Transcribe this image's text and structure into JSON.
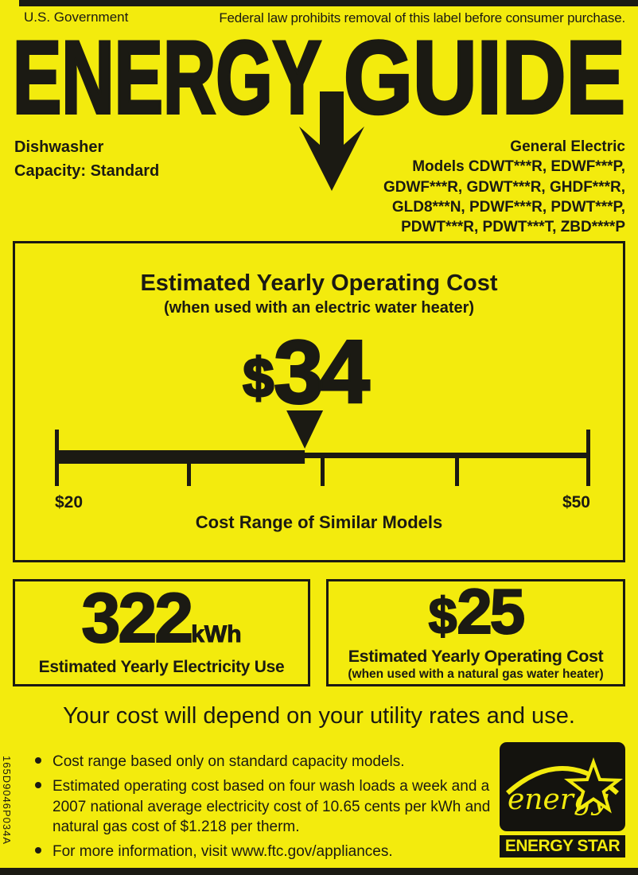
{
  "colors": {
    "background_yellow": "#f3eb0d",
    "ink_black": "#1b1a13"
  },
  "icons": {
    "title_arrow": "down-arrow-icon",
    "cost_marker": "triangle-down-icon",
    "energy_star_emblem": "star-outline-icon"
  },
  "header": {
    "left": "U.S. Government",
    "right": "Federal law prohibits removal of this label before consumer purchase."
  },
  "title": {
    "word1": "ENERGY",
    "word2": "GUIDE"
  },
  "product": {
    "type": "Dishwasher",
    "capacity": "Capacity: Standard"
  },
  "manufacturer": {
    "name": "General Electric",
    "models_lines": [
      "Models CDWT***R, EDWF***P,",
      "GDWF***R, GDWT***R, GHDF***R,",
      "GLD8***N, PDWF***R, PDWT***P,",
      "PDWT***R, PDWT***T, ZBD****P"
    ]
  },
  "cost_box": {
    "title": "Estimated Yearly Operating Cost",
    "subtitle": "(when used with an electric water heater)",
    "currency": "$",
    "amount": "34",
    "scale": {
      "min": 20,
      "max": 50,
      "value": 34,
      "min_label": "$20",
      "max_label": "$50"
    },
    "caption": "Cost Range of Similar Models"
  },
  "electricity_box": {
    "value": "322",
    "unit": "kWh",
    "label": "Estimated Yearly Electricity Use"
  },
  "gas_box": {
    "currency": "$",
    "amount": "25",
    "label": "Estimated Yearly Operating Cost",
    "sublabel": "(when used with a natural gas water heater)"
  },
  "disclaimer": "Your cost will depend on your utility rates and use.",
  "footnotes": [
    "Cost range based only on standard capacity models.",
    "Estimated operating cost based on four wash loads a week and a 2007 national average electricity cost of 10.65 cents per kWh and natural gas cost of $1.218 per therm.",
    "For more information, visit www.ftc.gov/appliances."
  ],
  "energy_star": {
    "script": "energy",
    "label": "ENERGY STAR"
  },
  "part_number": "165D9046P034A"
}
